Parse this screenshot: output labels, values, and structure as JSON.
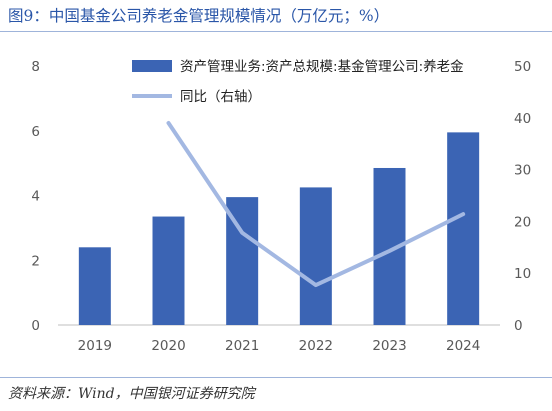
{
  "header": {
    "title": "图9：中国基金公司养老金管理规模情况（万亿元；%）"
  },
  "footer": {
    "source": "资料来源：Wind，中国银河证券研究院"
  },
  "chart_data": {
    "type": "bar",
    "categories": [
      "2019",
      "2020",
      "2021",
      "2022",
      "2023",
      "2024"
    ],
    "series": [
      {
        "name": "资产管理业务:资产总规模:基金管理公司:养老金",
        "type": "bar",
        "axis": "left",
        "color": "#3b64b4",
        "values": [
          2.4,
          3.35,
          3.95,
          4.25,
          4.85,
          5.95
        ]
      },
      {
        "name": "同比（右轴）",
        "type": "line",
        "axis": "right",
        "color": "#a3b8e2",
        "values": [
          null,
          39.0,
          17.8,
          7.7,
          14.3,
          21.4
        ]
      }
    ],
    "y_left": {
      "min": 0,
      "max": 8,
      "ticks": [
        0,
        2,
        4,
        6,
        8
      ]
    },
    "y_right": {
      "min": 0,
      "max": 50,
      "ticks": [
        0,
        10,
        20,
        30,
        40,
        50
      ]
    },
    "grid": false,
    "legend_position": "top-right"
  }
}
